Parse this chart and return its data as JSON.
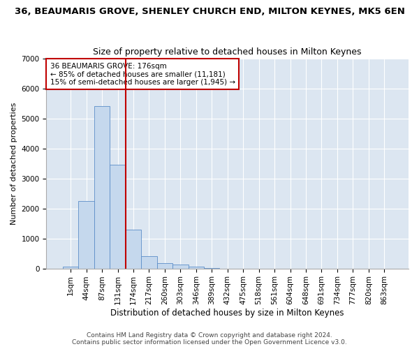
{
  "title1": "36, BEAUMARIS GROVE, SHENLEY CHURCH END, MILTON KEYNES, MK5 6EN",
  "title2": "Size of property relative to detached houses in Milton Keynes",
  "xlabel": "Distribution of detached houses by size in Milton Keynes",
  "ylabel": "Number of detached properties",
  "bar_color": "#c5d8ed",
  "bar_edge_color": "#5b8dc8",
  "background_color": "#dce6f1",
  "grid_color": "#ffffff",
  "fig_background": "#ffffff",
  "categories": [
    "1sqm",
    "44sqm",
    "87sqm",
    "131sqm",
    "174sqm",
    "217sqm",
    "260sqm",
    "303sqm",
    "346sqm",
    "389sqm",
    "432sqm",
    "475sqm",
    "518sqm",
    "561sqm",
    "604sqm",
    "648sqm",
    "691sqm",
    "734sqm",
    "777sqm",
    "820sqm",
    "863sqm"
  ],
  "values": [
    55,
    2250,
    5400,
    3450,
    1300,
    400,
    175,
    120,
    50,
    10,
    0,
    0,
    0,
    0,
    0,
    0,
    0,
    0,
    0,
    0,
    0
  ],
  "property_line_index": 4,
  "property_line_color": "#c00000",
  "annotation_line1": "36 BEAUMARIS GROVE: 176sqm",
  "annotation_line2": "← 85% of detached houses are smaller (11,181)",
  "annotation_line3": "15% of semi-detached houses are larger (1,945) →",
  "annotation_box_color": "#ffffff",
  "annotation_box_edge": "#c00000",
  "ylim": [
    0,
    7000
  ],
  "yticks": [
    0,
    1000,
    2000,
    3000,
    4000,
    5000,
    6000,
    7000
  ],
  "footer1": "Contains HM Land Registry data © Crown copyright and database right 2024.",
  "footer2": "Contains public sector information licensed under the Open Government Licence v3.0.",
  "title1_fontsize": 9.5,
  "title2_fontsize": 9,
  "xlabel_fontsize": 8.5,
  "ylabel_fontsize": 8,
  "tick_fontsize": 7.5,
  "annotation_fontsize": 7.5,
  "footer_fontsize": 6.5
}
